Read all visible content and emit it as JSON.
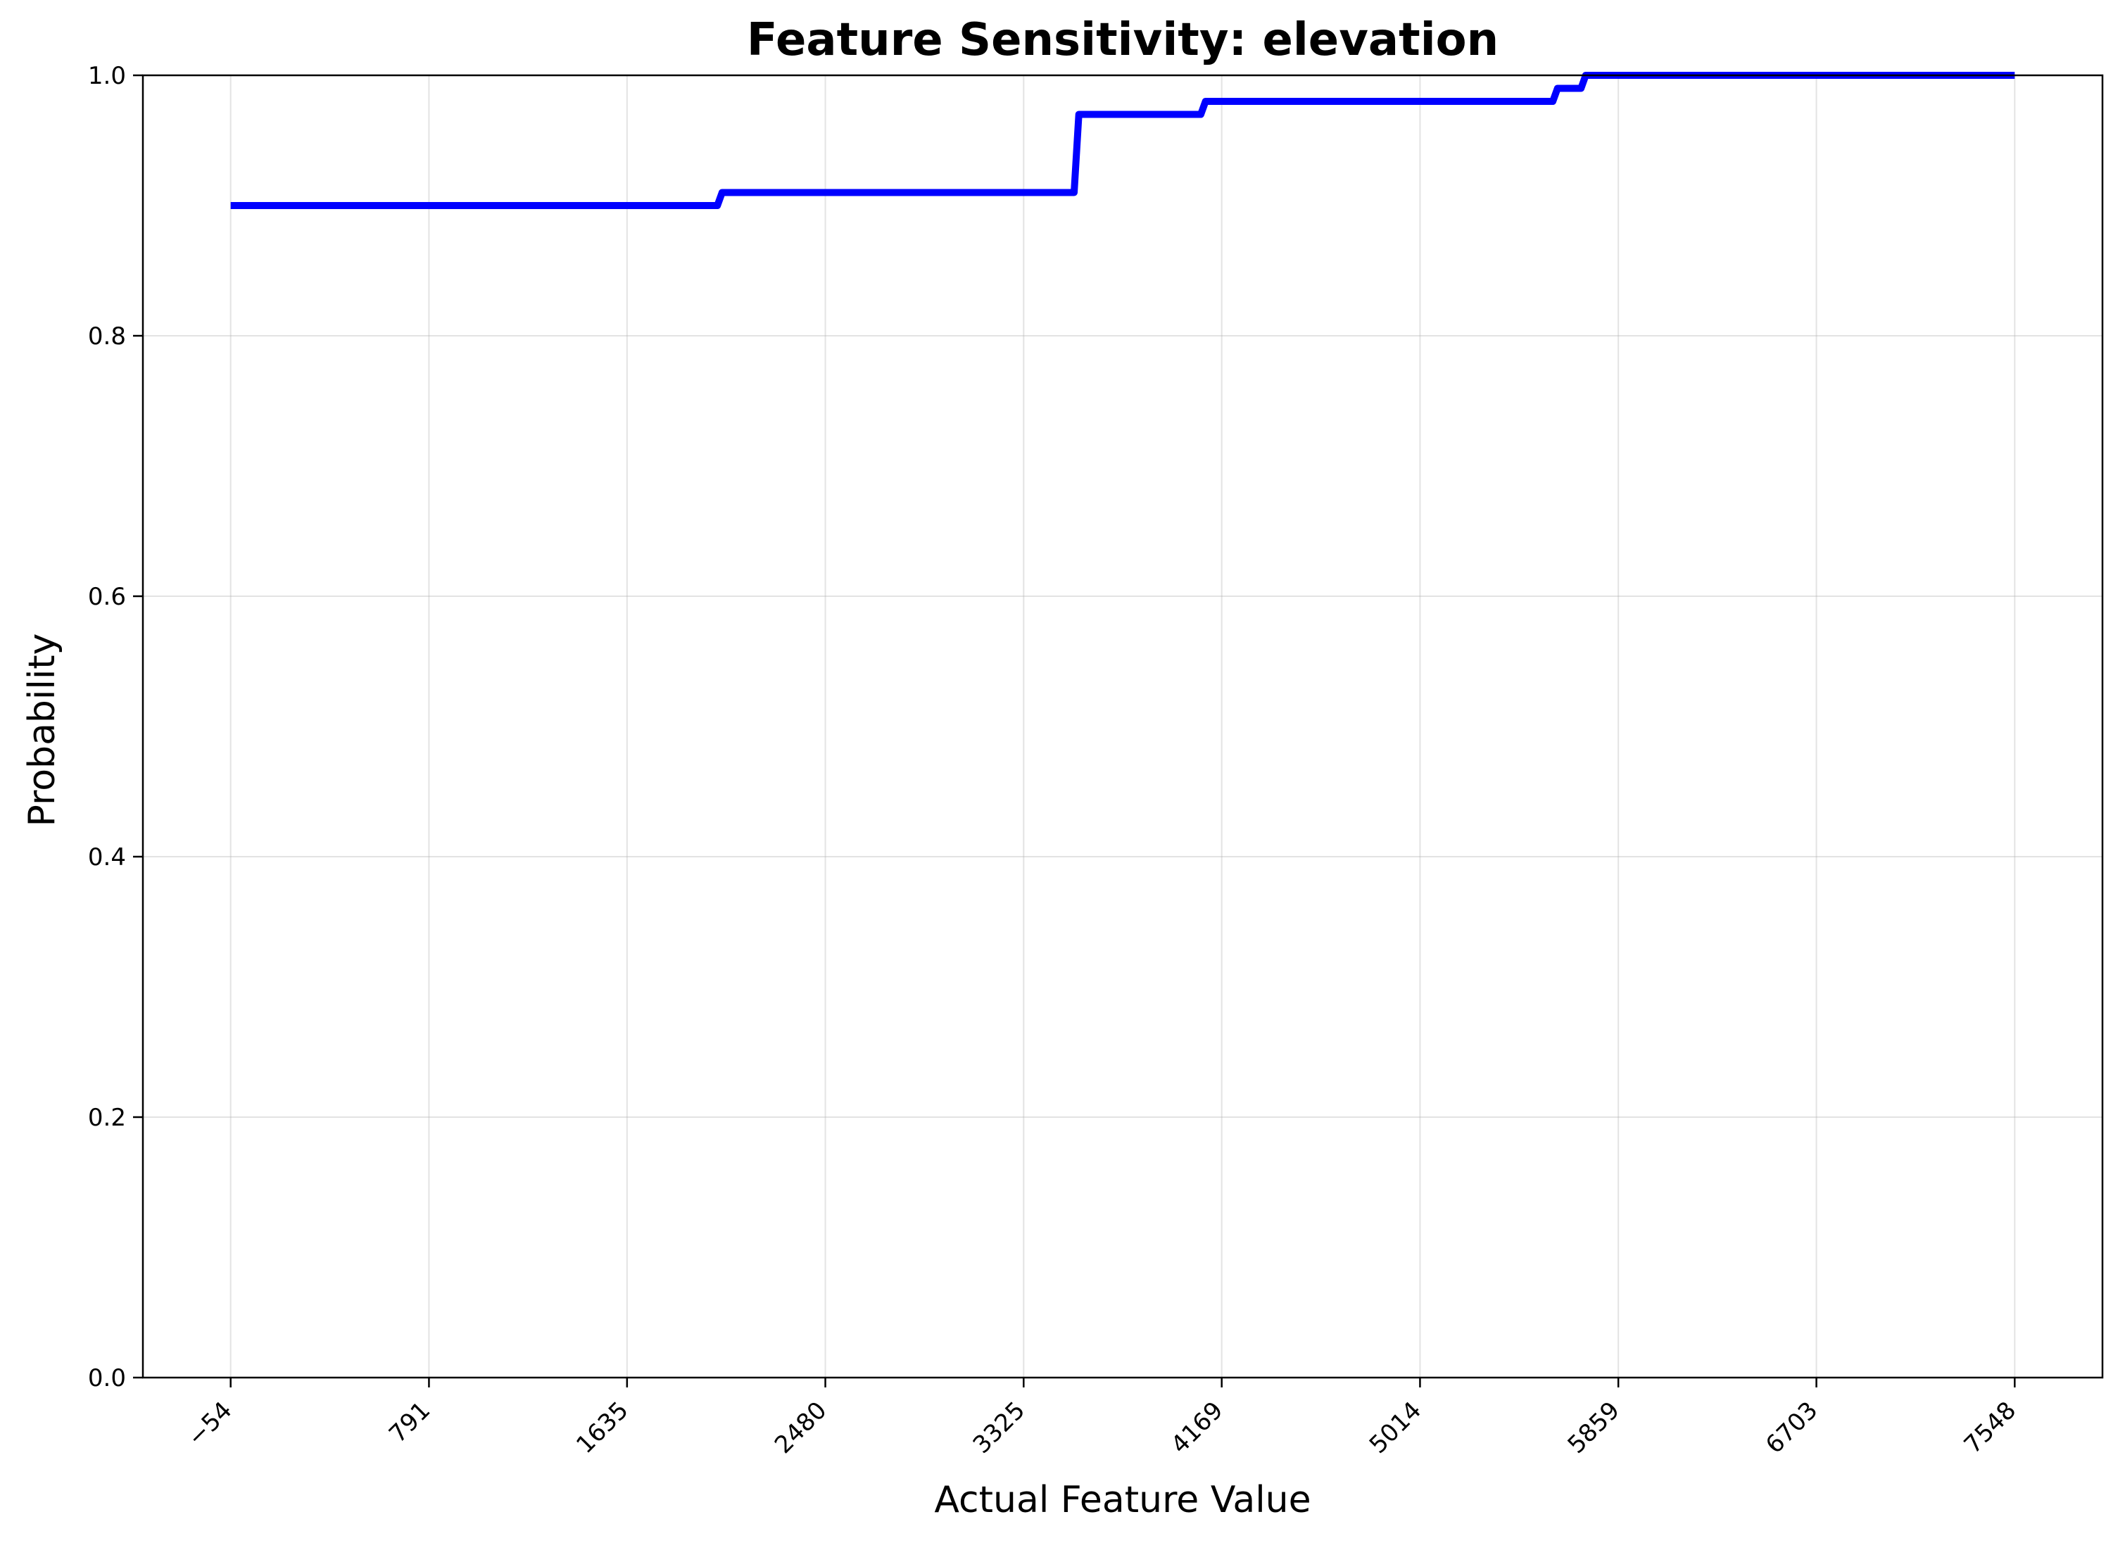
{
  "chart_data": {
    "type": "line",
    "title": "Feature Sensitivity: elevation",
    "xlabel": "Actual Feature Value",
    "ylabel": "Probability",
    "xlim": [
      -428,
      7922
    ],
    "ylim": [
      0.0,
      1.0
    ],
    "x_ticks": [
      -54,
      791,
      1635,
      2480,
      3325,
      4169,
      5014,
      5859,
      6703,
      7548
    ],
    "x_tick_labels": [
      "−54",
      "791",
      "1635",
      "2480",
      "3325",
      "4169",
      "5014",
      "5859",
      "6703",
      "7548"
    ],
    "y_ticks": [
      0.0,
      0.2,
      0.4,
      0.6,
      0.8,
      1.0
    ],
    "y_tick_labels": [
      "0.0",
      "0.2",
      "0.4",
      "0.6",
      "0.8",
      "1.0"
    ],
    "grid": true,
    "series": [
      {
        "color": "#0000ff",
        "x": [
          -54,
          2020,
          2040,
          3540,
          3560,
          4080,
          4100,
          5580,
          5600,
          5700,
          5720,
          7548
        ],
        "y": [
          0.9,
          0.9,
          0.91,
          0.91,
          0.97,
          0.97,
          0.98,
          0.98,
          0.99,
          0.99,
          1.0,
          1.0
        ]
      }
    ]
  }
}
